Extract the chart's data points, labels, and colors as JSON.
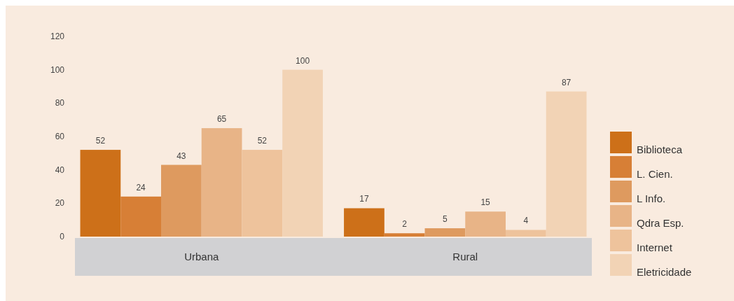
{
  "chart_data": {
    "type": "bar",
    "categories": [
      "Urbana",
      "Rural"
    ],
    "series": [
      {
        "name": "Biblioteca",
        "color": "#cd7019",
        "values": [
          52,
          17
        ]
      },
      {
        "name": "L. Cien.",
        "color": "#d77f36",
        "values": [
          24,
          2
        ]
      },
      {
        "name": "L Info.",
        "color": "#de9a5f",
        "values": [
          43,
          5
        ]
      },
      {
        "name": "Qdra Esp.",
        "color": "#e8b487",
        "values": [
          65,
          15
        ]
      },
      {
        "name": "Internet",
        "color": "#eec39c",
        "values": [
          52,
          4
        ]
      },
      {
        "name": "Eletricidade",
        "color": "#f2d3b5",
        "values": [
          100,
          87
        ]
      }
    ],
    "ylim": [
      0,
      120
    ],
    "yticks": [
      0,
      20,
      40,
      60,
      80,
      100,
      120
    ],
    "grid": false,
    "legend": "right",
    "data_labels": true
  }
}
